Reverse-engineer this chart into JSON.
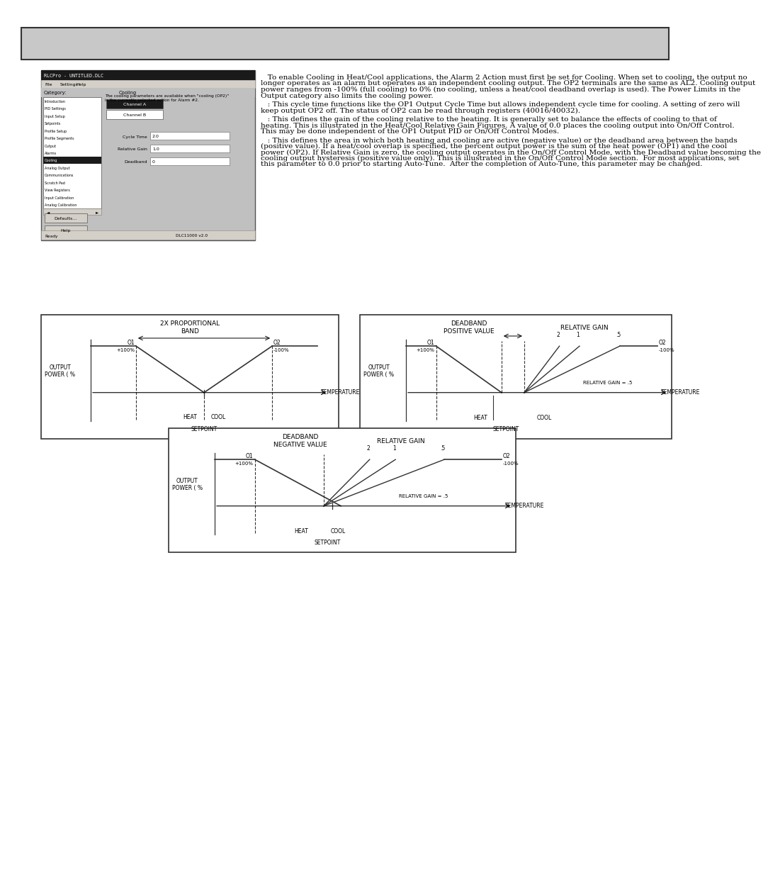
{
  "page_bg": "#ffffff",
  "header_bg": "#c8c8c8",
  "header_border": "#333333",
  "body_paragraphs": [
    "   To enable Cooling in Heat/Cool applications, the Alarm 2 Action must first be set for Cooling. When set to cooling, the output no longer operates as an alarm but operates as an independent cooling output. The OP2 terminals are the same as AL2. Cooling output power ranges from -100% (full cooling) to 0% (no cooling, unless a heat/cool deadband overlap is used). The Power Limits in the Output category also limits the cooling power.",
    "   : This cycle time functions like the OP1 Output Cycle Time but allows independent cycle time for cooling. A setting of zero will keep output OP2 off. The status of OP2 can be read through registers (40016/40032).",
    "   : This defines the gain of the cooling relative to the heating. It is generally set to balance the effects of cooling to that of heating. This is illustrated in the Heat/Cool Relative Gain Figures. A value of 0.0 places the cooling output into On/Off Control. This may be done independent of the OP1 Output PID or On/Off Control Modes.",
    "   : This defines the area in which both heating and cooling are active (negative value) or the deadband area between the bands (positive value). If a heat/cool overlap is specified, the percent output power is the sum of the heat power (OP1) and the cool power (OP2). If Relative Gain is zero, the cooling output operates in the On/Off Control Mode, with the Deadband value becoming the cooling output hysteresis (positive value only). This is illustrated in the On/Off Control Mode section.  For most applications, set this parameter to 0.0 prior to starting Auto-Tune.  After the completion of Auto-Tune, this parameter may be changed."
  ],
  "ss": {
    "nav_items": [
      "Introduction",
      "PID Settings",
      "Input Setup",
      "Setpoints",
      "Profile Setup",
      "Profile Segments",
      "Output",
      "Alarms",
      "Cooling",
      "Analog Output",
      "Communications",
      "Scratch Pad",
      "View Registers",
      "Input Calibration",
      "Analog Calibration"
    ],
    "selected_nav": "Cooling",
    "title_text": "RLCPro - UNTITLED.DLC",
    "menu_items": [
      "File",
      "Settings",
      "Help"
    ],
    "category_label": "Category:",
    "cooling_label": "Cooling",
    "channel_a": "Channel A",
    "channel_b": "Channel B",
    "field_labels": [
      "Cycle Time",
      "Relative Gain",
      "Deadband"
    ],
    "field_values": [
      "2.0",
      "1.0",
      "0"
    ],
    "footer_text": "The cooling parameters are available when \"cooling (OP2)\"\nis the currently selected action for Alarm #2.",
    "defaults_btn": "Defaults...",
    "help_btn": "Help",
    "status_text": "Ready",
    "version_text": "DLC11000 v2.0"
  },
  "diag1": {
    "title1": "2X PROPORTIONAL",
    "title2": "BAND",
    "o1": "O1",
    "o1p": "+100%",
    "o2": "O2",
    "o2p": "-100%",
    "ylabel": "OUTPUT\nPOWER ( %",
    "xlabel": "TEMPERATURE",
    "heat": "HEAT",
    "cool": "COOL",
    "setpoint": "SETPOINT"
  },
  "diag2": {
    "title1": "DEADBAND",
    "title2": "POSITIVE VALUE",
    "rg_title": "RELATIVE GAIN",
    "o1": "O1",
    "o1p": "+100%",
    "o2": "O2",
    "o2p": "-100%",
    "rg_vals": [
      "2",
      "1",
      ".5"
    ],
    "ylabel": "OUTPUT\nPOWER ( %",
    "xlabel": "TEMPERATURE",
    "heat": "HEAT",
    "cool": "COOL",
    "setpoint": "SETPOINT",
    "rg_eq": "RELATIVE GAIN = .5"
  },
  "diag3": {
    "title1": "DEADBAND",
    "title2": "NEGATIVE VALUE",
    "rg_title": "RELATIVE GAIN",
    "o1": "O1",
    "o1p": "+100%",
    "o2": "O2",
    "o2p": "-100%",
    "rg_vals": [
      "2",
      "1",
      ".5"
    ],
    "ylabel": "OUTPUT\nPOWER ( %",
    "xlabel": "TEMPERATURE",
    "heat": "HEAT",
    "cool": "COOL",
    "setpoint": "SETPOINT",
    "rg_eq": "RELATIVE GAIN = .5"
  }
}
